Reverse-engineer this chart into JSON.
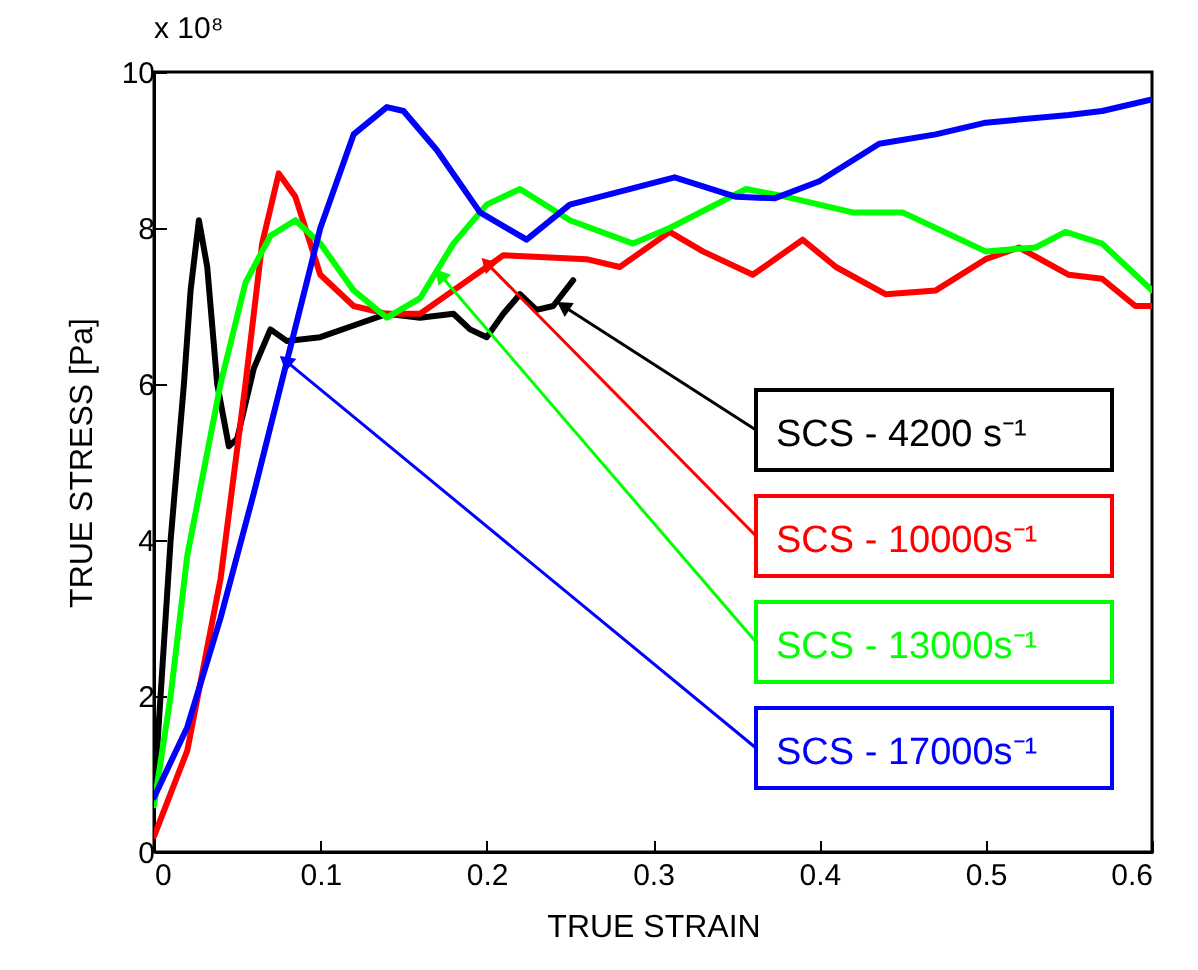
{
  "chart_data": {
    "type": "line",
    "xlabel": "TRUE STRAIN",
    "ylabel": "TRUE STRESS [Pa]",
    "xlim": [
      0,
      0.6
    ],
    "ylim": [
      0,
      10
    ],
    "xticks": [
      0,
      0.1,
      0.2,
      0.3,
      0.4,
      0.5,
      0.6
    ],
    "yticks": [
      0,
      2,
      4,
      6,
      8,
      10
    ],
    "grid": false,
    "line_style": "solid",
    "marker": "none",
    "annotations": [
      "x 10⁸",
      {
        "text": "SCS - 4200 s⁻¹",
        "x": 0.246,
        "y": 7.0
      },
      {
        "text": "SCS - 10000s⁻¹",
        "x": 0.2,
        "y": 7.55
      },
      {
        "text": "SCS - 13000s⁻¹",
        "x": 0.172,
        "y": 7.4
      },
      {
        "text": "SCS - 17000s⁻¹",
        "x": 0.079,
        "y": 6.3
      }
    ],
    "series": [
      {
        "color": "#000000",
        "x": [
          0,
          0.01,
          0.018,
          0.022,
          0.027,
          0.032,
          0.038,
          0.045,
          0.05,
          0.06,
          0.07,
          0.08,
          0.1,
          0.12,
          0.14,
          0.16,
          0.18,
          0.19,
          0.2,
          0.21,
          0.22,
          0.23,
          0.24,
          0.252
        ],
        "values": [
          0.7,
          4,
          6,
          7.2,
          8.1,
          7.5,
          6,
          5.2,
          5.3,
          6.2,
          6.7,
          6.55,
          6.6,
          6.75,
          6.9,
          6.85,
          6.9,
          6.7,
          6.6,
          6.9,
          7.15,
          6.95,
          7.0,
          7.33
        ]
      },
      {
        "color": "#ff0000",
        "x": [
          0,
          0.02,
          0.04,
          0.055,
          0.065,
          0.075,
          0.085,
          0.1,
          0.12,
          0.14,
          0.16,
          0.18,
          0.2,
          0.21,
          0.26,
          0.28,
          0.31,
          0.33,
          0.36,
          0.39,
          0.41,
          0.44,
          0.47,
          0.5,
          0.52,
          0.55,
          0.57,
          0.59,
          0.6
        ],
        "values": [
          0.2,
          1.3,
          3.5,
          6,
          7.8,
          8.7,
          8.4,
          7.4,
          7.0,
          6.9,
          6.9,
          7.2,
          7.5,
          7.65,
          7.6,
          7.5,
          7.95,
          7.7,
          7.4,
          7.85,
          7.5,
          7.15,
          7.2,
          7.6,
          7.75,
          7.4,
          7.35,
          7.0,
          7.0
        ]
      },
      {
        "color": "#00ff00",
        "x": [
          0,
          0.01,
          0.02,
          0.04,
          0.055,
          0.07,
          0.085,
          0.1,
          0.12,
          0.14,
          0.16,
          0.18,
          0.2,
          0.22,
          0.25,
          0.288,
          0.31,
          0.356,
          0.38,
          0.42,
          0.45,
          0.48,
          0.5,
          0.53,
          0.548,
          0.57,
          0.6
        ],
        "values": [
          0.6,
          2,
          3.8,
          6,
          7.3,
          7.9,
          8.1,
          7.8,
          7.2,
          6.85,
          7.1,
          7.8,
          8.3,
          8.5,
          8.1,
          7.8,
          8.0,
          8.5,
          8.4,
          8.2,
          8.2,
          7.9,
          7.7,
          7.75,
          7.95,
          7.8,
          7.2
        ]
      },
      {
        "color": "#0000ff",
        "x": [
          0,
          0.02,
          0.04,
          0.06,
          0.08,
          0.1,
          0.12,
          0.14,
          0.15,
          0.17,
          0.196,
          0.224,
          0.25,
          0.313,
          0.35,
          0.373,
          0.4,
          0.436,
          0.47,
          0.5,
          0.55,
          0.57,
          0.6
        ],
        "values": [
          0.7,
          1.6,
          3.0,
          4.6,
          6.3,
          8.0,
          9.2,
          9.55,
          9.5,
          9.0,
          8.2,
          7.85,
          8.3,
          8.65,
          8.4,
          8.38,
          8.6,
          9.08,
          9.2,
          9.35,
          9.45,
          9.5,
          9.65
        ]
      }
    ]
  }
}
